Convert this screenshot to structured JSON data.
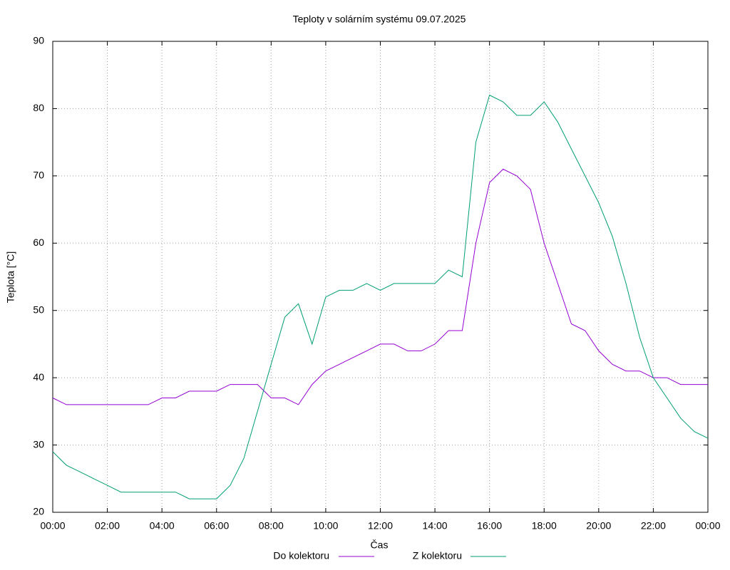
{
  "chart_data": {
    "type": "line",
    "title": "Teploty v solárním systému 09.07.2025",
    "x_label": "Čas",
    "y_label": "Teplota [°C]",
    "x": [
      0,
      0.5,
      1,
      1.5,
      2,
      2.5,
      3,
      3.5,
      4,
      4.5,
      5,
      5.5,
      6,
      6.5,
      7,
      7.5,
      8,
      8.5,
      9,
      9.5,
      10,
      10.5,
      11,
      11.5,
      12,
      12.5,
      13,
      13.5,
      14,
      14.5,
      15,
      15.5,
      16,
      16.5,
      17,
      17.5,
      18,
      18.5,
      19,
      19.5,
      20,
      20.5,
      21,
      21.5,
      22,
      22.5,
      23,
      23.5,
      24
    ],
    "series": [
      {
        "name": "Do kolektoru",
        "color": "#9400d3",
        "values": [
          37,
          36,
          36,
          36,
          36,
          36,
          36,
          36,
          37,
          37,
          38,
          38,
          38,
          39,
          39,
          39,
          37,
          37,
          36,
          39,
          41,
          42,
          43,
          44,
          45,
          45,
          44,
          44,
          45,
          47,
          47,
          60,
          69,
          71,
          70,
          68,
          60,
          54,
          48,
          47,
          44,
          42,
          41,
          41,
          40,
          40,
          39,
          39,
          39
        ]
      },
      {
        "name": "Z kolektoru",
        "color": "#009e73",
        "values": [
          29,
          27,
          26,
          25,
          24,
          23,
          23,
          23,
          23,
          23,
          22,
          22,
          22,
          24,
          28,
          35,
          42,
          49,
          51,
          45,
          52,
          53,
          53,
          54,
          53,
          54,
          54,
          54,
          54,
          56,
          55,
          75,
          82,
          81,
          79,
          79,
          81,
          78,
          74,
          70,
          66,
          61,
          54,
          46,
          40,
          37,
          34,
          32,
          31
        ]
      }
    ],
    "xlim": [
      0,
      24
    ],
    "xticks": [
      {
        "value": 0,
        "label": "00:00"
      },
      {
        "value": 2,
        "label": "02:00"
      },
      {
        "value": 4,
        "label": "04:00"
      },
      {
        "value": 6,
        "label": "06:00"
      },
      {
        "value": 8,
        "label": "08:00"
      },
      {
        "value": 10,
        "label": "10:00"
      },
      {
        "value": 12,
        "label": "12:00"
      },
      {
        "value": 14,
        "label": "14:00"
      },
      {
        "value": 16,
        "label": "16:00"
      },
      {
        "value": 18,
        "label": "18:00"
      },
      {
        "value": 20,
        "label": "20:00"
      },
      {
        "value": 22,
        "label": "22:00"
      },
      {
        "value": 24,
        "label": "00:00"
      }
    ],
    "ylim": [
      20,
      90
    ],
    "yticks": [
      20,
      30,
      40,
      50,
      60,
      70,
      80,
      90
    ],
    "grid": true,
    "legend": "bottom"
  }
}
